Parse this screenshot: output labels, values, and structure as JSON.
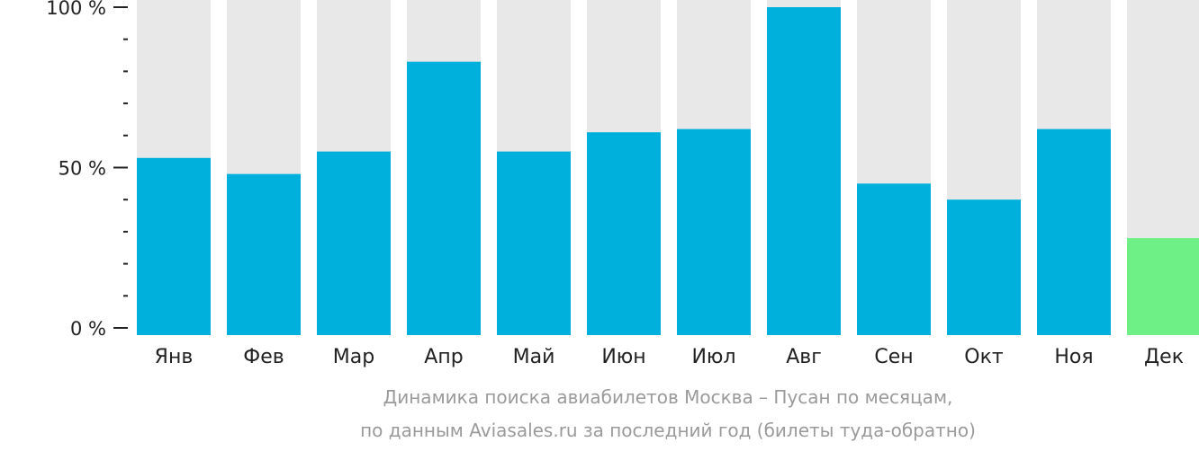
{
  "chart_data": {
    "type": "bar",
    "categories": [
      "Янв",
      "Фев",
      "Мар",
      "Апр",
      "Май",
      "Июн",
      "Июл",
      "Авг",
      "Сен",
      "Окт",
      "Ноя",
      "Дек"
    ],
    "values": [
      53,
      48,
      55,
      83,
      55,
      61,
      62,
      100,
      45,
      40,
      62,
      28
    ],
    "ylim": [
      0,
      100
    ],
    "yticks": [
      {
        "value": 100,
        "label": "100 %"
      },
      {
        "value": 50,
        "label": "50 %"
      },
      {
        "value": 0,
        "label": "0 %"
      }
    ],
    "minor_tick_step": 10,
    "grid": false,
    "colors": {
      "bar": "#00b0dc",
      "highlight_bar": "#6ef087",
      "bar_background": "#e8e8e8",
      "axis": "#222222"
    },
    "highlight_index": 11
  },
  "caption": {
    "line1": "Динамика поиска авиабилетов Москва – Пусан по месяцам,",
    "line2": "по данным Aviasales.ru за последний год (билеты туда-обратно)"
  }
}
